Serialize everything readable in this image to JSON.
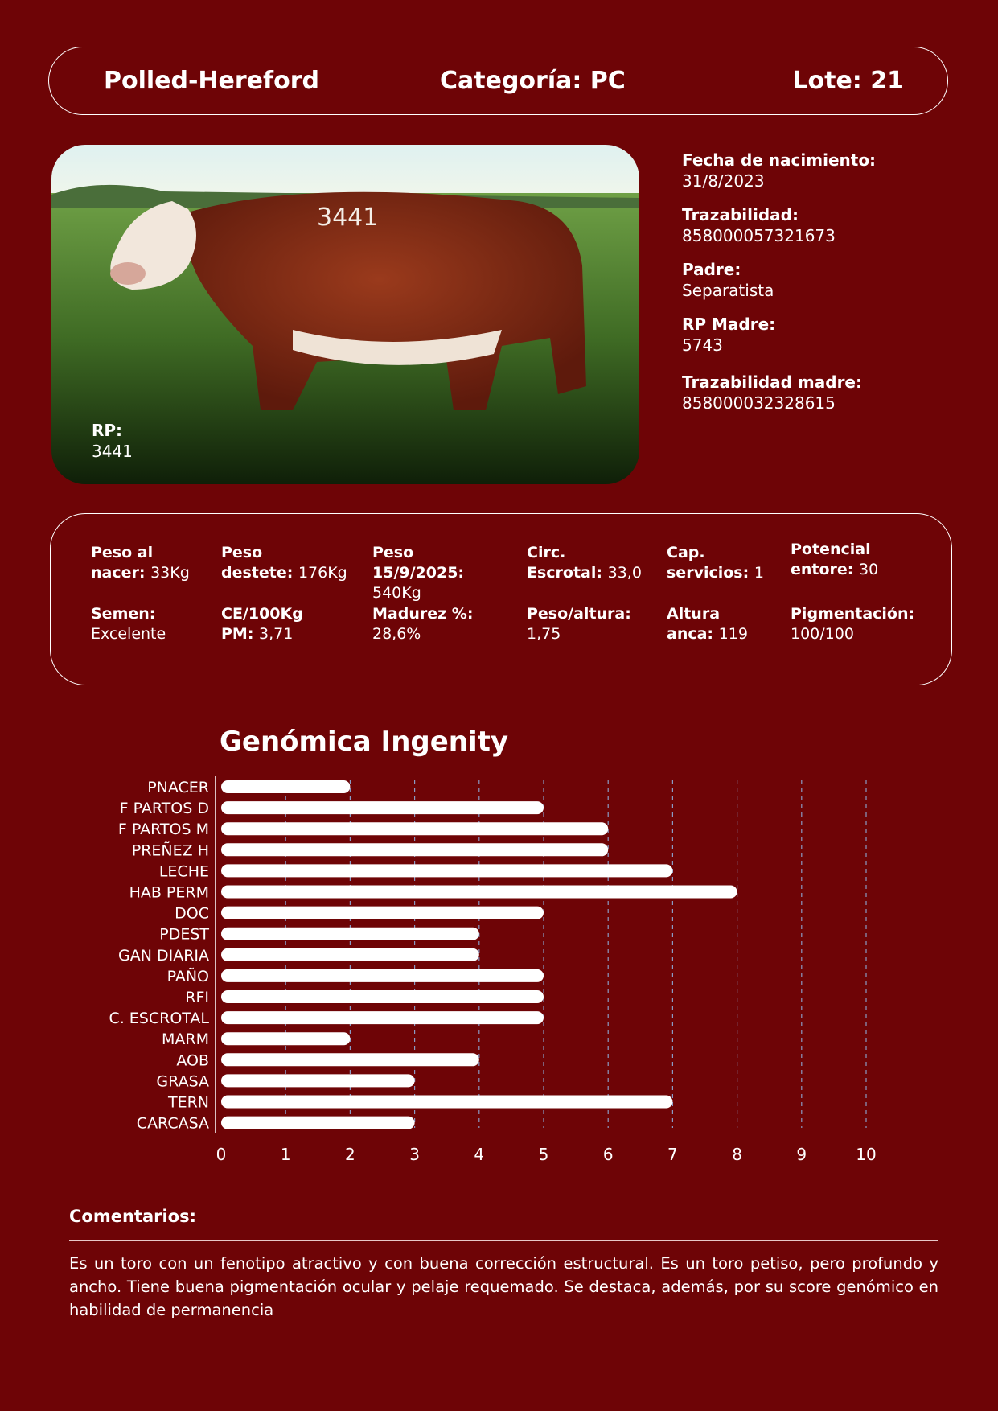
{
  "header": {
    "breed": "Polled-Hereford",
    "category": "Categoría: PC",
    "lot": "Lote: 21"
  },
  "photo": {
    "rp_label": "RP:",
    "rp_value": "3441",
    "painted_number": "3441"
  },
  "info": [
    {
      "label": "Fecha de nacimiento:",
      "value": "31/8/2023"
    },
    {
      "label": "Trazabilidad:",
      "value": "858000057321673"
    },
    {
      "label": "Padre:",
      "value": "Separatista"
    },
    {
      "label": "RP Madre:",
      "value": "5743"
    },
    {
      "label": "Trazabilidad madre:",
      "value": "858000032328615"
    }
  ],
  "stats": [
    {
      "label": "Peso al nacer:",
      "value": "33Kg"
    },
    {
      "label": "Peso destete:",
      "value": "176Kg"
    },
    {
      "label": "Peso 15/9/2025:",
      "value": "540Kg"
    },
    {
      "label": "Circ. Escrotal:",
      "value": "33,0"
    },
    {
      "label": "Cap. servicios:",
      "value": "1"
    },
    {
      "label": "Potencial entore:",
      "value": "30"
    },
    {
      "label": "Semen:",
      "value": "Excelente"
    },
    {
      "label": "CE/100Kg PM:",
      "value": "3,71"
    },
    {
      "label": "Madurez %:",
      "value": "28,6%"
    },
    {
      "label": "Peso/altura:",
      "value": "1,75"
    },
    {
      "label": "Altura anca:",
      "value": "119"
    },
    {
      "label": "Pigmentación:",
      "value": "100/100"
    }
  ],
  "chart_data": {
    "type": "bar",
    "orientation": "horizontal",
    "title": "Genómica Ingenity",
    "categories": [
      "PNACER",
      "F PARTOS D",
      "F PARTOS M",
      "PREÑEZ H",
      "LECHE",
      "HAB PERM",
      "DOC",
      "PDEST",
      "GAN DIARIA",
      "PAÑO",
      "RFI",
      "C. ESCROTAL",
      "MARM",
      "AOB",
      "GRASA",
      "TERN",
      "CARCASA"
    ],
    "values": [
      2,
      5,
      6,
      6,
      7,
      8,
      5,
      4,
      4,
      5,
      5,
      5,
      2,
      4,
      3,
      7,
      3
    ],
    "xlim": [
      0,
      10
    ],
    "xticks": [
      "0",
      "1",
      "2",
      "3",
      "4",
      "5",
      "6",
      "7",
      "8",
      "9",
      "10"
    ],
    "grid": "vertical dashed",
    "bar_color": "#ffffff",
    "grid_color": "#8a9bc4"
  },
  "comments": {
    "label": "Comentarios:",
    "text": "Es un toro con un fenotipo atractivo y con buena corrección estructural. Es un toro petiso, pero profundo y ancho. Tiene buena pigmentación ocular y pelaje requemado. Se destaca, además, por su score genómico en habilidad de permanencia"
  },
  "colors": {
    "background": "#6e0406",
    "text": "#ffffff"
  }
}
